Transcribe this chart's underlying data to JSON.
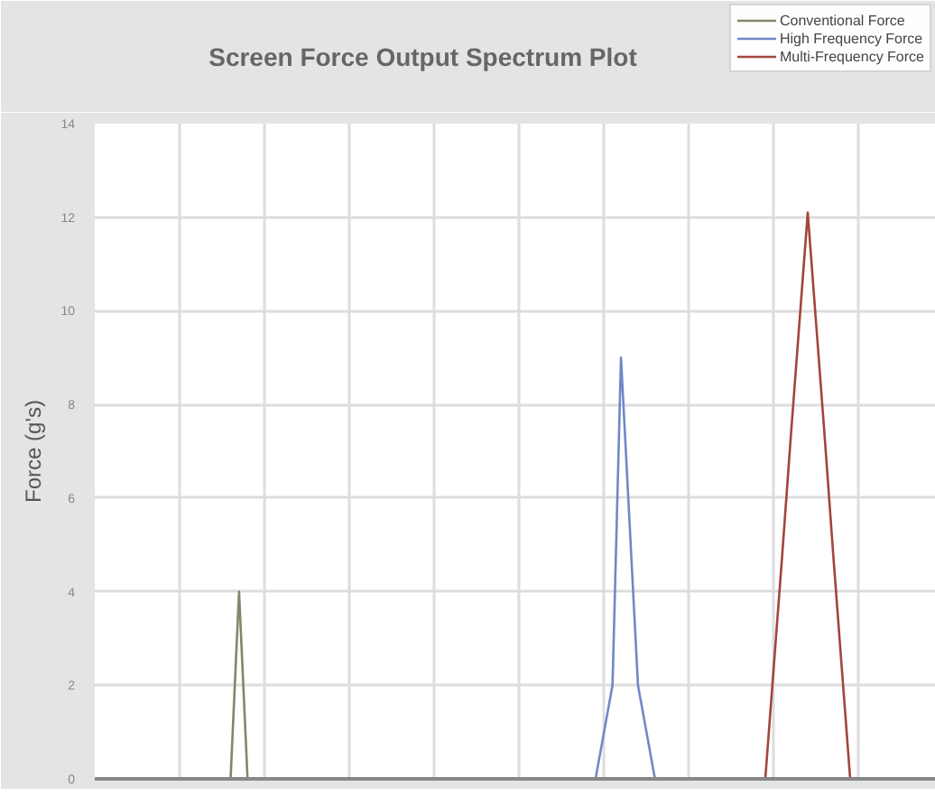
{
  "chart_data": {
    "type": "line",
    "title": "Screen Force Output Spectrum Plot",
    "ylabel": "Force (g's)",
    "categories": [
      null,
      null,
      null,
      null,
      null,
      null,
      null,
      null,
      null,
      null,
      null,
      null,
      null,
      null,
      null,
      null,
      null,
      null,
      null,
      null,
      null,
      null,
      null,
      null,
      null,
      null,
      null,
      null,
      null,
      null,
      null,
      null,
      null,
      null,
      null,
      null,
      null,
      null,
      null,
      null,
      null,
      null,
      null,
      null,
      null,
      null,
      null,
      null,
      null,
      null,
      null,
      null,
      null,
      null,
      null,
      null,
      null,
      null,
      null,
      null,
      null,
      null,
      null,
      null,
      null,
      null,
      null,
      null,
      null,
      null,
      null,
      null,
      null,
      null,
      null,
      null,
      null,
      null,
      null,
      null,
      null,
      null,
      null,
      null,
      null,
      null,
      null,
      null,
      null,
      null,
      null,
      null,
      null,
      null,
      null,
      null,
      null,
      null,
      null,
      null
    ],
    "series": [
      {
        "name": "Conventional Force",
        "color": "#85856a",
        "values": [
          null,
          null,
          null,
          null,
          null,
          null,
          null,
          null,
          null,
          null,
          null,
          null,
          null,
          null,
          null,
          null,
          0,
          4,
          0,
          null,
          null,
          null,
          null,
          null,
          null,
          null,
          null,
          null,
          null,
          null,
          null,
          null,
          null,
          null,
          null,
          null,
          null,
          null,
          null,
          null,
          null,
          null,
          null,
          null,
          null,
          null,
          null,
          null,
          null,
          null,
          null,
          null,
          null,
          null,
          null,
          null,
          null,
          null,
          null,
          null,
          null,
          null,
          null,
          null,
          null,
          null,
          null,
          null,
          null,
          null,
          null,
          null,
          null,
          null,
          null,
          null,
          null,
          null,
          null,
          null,
          null,
          null,
          null,
          null,
          null,
          null,
          null,
          null,
          null,
          null,
          null,
          null,
          null,
          null,
          null,
          null,
          null,
          null,
          null,
          null
        ]
      },
      {
        "name": "High Frequency Force",
        "color": "#7088c8",
        "values": [
          null,
          null,
          null,
          null,
          null,
          null,
          null,
          null,
          null,
          null,
          null,
          null,
          null,
          null,
          null,
          null,
          null,
          null,
          null,
          null,
          null,
          null,
          null,
          null,
          null,
          null,
          null,
          null,
          null,
          null,
          null,
          null,
          null,
          null,
          null,
          null,
          null,
          null,
          null,
          null,
          null,
          null,
          null,
          null,
          null,
          null,
          null,
          null,
          null,
          null,
          null,
          null,
          null,
          null,
          null,
          null,
          null,
          null,
          null,
          0,
          1,
          2,
          9,
          5.5,
          2,
          1,
          0,
          null,
          null,
          null,
          null,
          null,
          null,
          null,
          null,
          null,
          null,
          null,
          null,
          null,
          null,
          null,
          null,
          null,
          null,
          null,
          null,
          null,
          null,
          null,
          null,
          null,
          null,
          null,
          null,
          null,
          null,
          null,
          null,
          null
        ]
      },
      {
        "name": "Multi-Frequency Force",
        "color": "#a3453b",
        "values": [
          null,
          null,
          null,
          null,
          null,
          null,
          null,
          null,
          null,
          null,
          null,
          null,
          null,
          null,
          null,
          null,
          null,
          null,
          null,
          null,
          null,
          null,
          null,
          null,
          null,
          null,
          null,
          null,
          null,
          null,
          null,
          null,
          null,
          null,
          null,
          null,
          null,
          null,
          null,
          null,
          null,
          null,
          null,
          null,
          null,
          null,
          null,
          null,
          null,
          null,
          null,
          null,
          null,
          null,
          null,
          null,
          null,
          null,
          null,
          null,
          null,
          null,
          null,
          null,
          null,
          null,
          null,
          null,
          null,
          null,
          null,
          null,
          null,
          null,
          null,
          null,
          null,
          null,
          null,
          0,
          2.4,
          4.8,
          7.3,
          9.7,
          12.1,
          9.7,
          7.3,
          4.8,
          2.4,
          0,
          null,
          null,
          null,
          null,
          null,
          null,
          null,
          null,
          null,
          null
        ]
      }
    ],
    "ylim": [
      0,
      14
    ],
    "yticks": [
      0,
      2,
      4,
      6,
      8,
      10,
      12,
      14
    ],
    "grid": true,
    "legend": "top right",
    "tick_labels": "y"
  }
}
